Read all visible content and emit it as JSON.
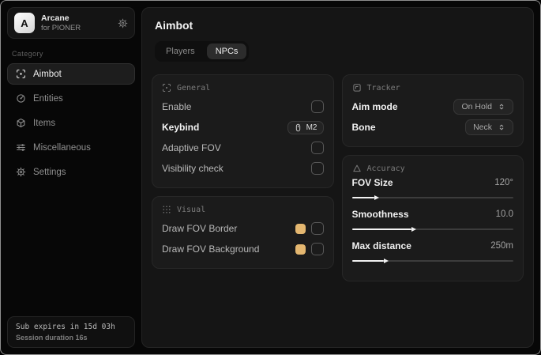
{
  "accent": "#e4b770",
  "sidebar": {
    "logo_letter": "A",
    "app_name": "Arcane",
    "app_subtitle": "for PIONER",
    "category_label": "Category",
    "items": [
      {
        "label": "Aimbot",
        "active": true
      },
      {
        "label": "Entities",
        "active": false
      },
      {
        "label": "Items",
        "active": false
      },
      {
        "label": "Miscellaneous",
        "active": false
      },
      {
        "label": "Settings",
        "active": false
      }
    ],
    "footer": {
      "line1": "Sub expires in 15d 03h",
      "line2": "Session duration 16s"
    }
  },
  "main": {
    "title": "Aimbot",
    "tabs": [
      {
        "label": "Players",
        "active": false
      },
      {
        "label": "NPCs",
        "active": true
      }
    ],
    "general": {
      "title": "General",
      "rows": {
        "enable": {
          "label": "Enable",
          "checked": false
        },
        "keybind": {
          "label": "Keybind",
          "value": "M2"
        },
        "adaptive_fov": {
          "label": "Adaptive FOV",
          "checked": false
        },
        "visibility": {
          "label": "Visibility check",
          "checked": false
        }
      }
    },
    "visual": {
      "title": "Visual",
      "rows": {
        "border": {
          "label": "Draw FOV Border",
          "color": "#e4b770",
          "checked": false
        },
        "background": {
          "label": "Draw FOV Background",
          "color": "#e4b770",
          "checked": false
        }
      }
    },
    "tracker": {
      "title": "Tracker",
      "rows": {
        "aim_mode": {
          "label": "Aim mode",
          "value": "On Hold"
        },
        "bone": {
          "label": "Bone",
          "value": "Neck"
        }
      }
    },
    "accuracy": {
      "title": "Accuracy",
      "sliders": [
        {
          "label": "FOV Size",
          "value": "120°",
          "percent": 14
        },
        {
          "label": "Smoothness",
          "value": "10.0",
          "percent": 37
        },
        {
          "label": "Max distance",
          "value": "250m",
          "percent": 20
        }
      ]
    }
  }
}
